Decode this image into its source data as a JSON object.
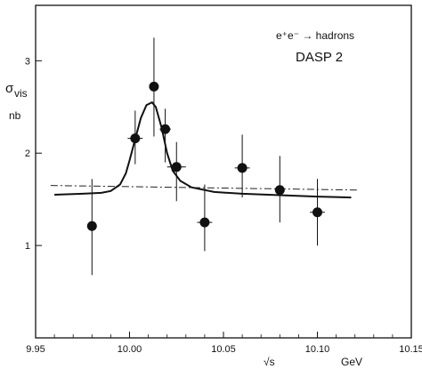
{
  "chart_data": {
    "type": "scatter",
    "title": "DASP 2",
    "reaction_label": "e⁺e⁻ → hadrons",
    "ylabel_main": "σ",
    "ylabel_sub": "vis",
    "yunit": "nb",
    "xlabel": "√s",
    "xunit": "GeV",
    "xlim": [
      9.95,
      10.15
    ],
    "ylim": [
      0.0,
      3.6
    ],
    "x_ticks": [
      9.95,
      10.0,
      10.05,
      10.1,
      10.15
    ],
    "x_tick_labels": [
      "9.95",
      "10.00",
      "10.05",
      "10.10",
      "10.15"
    ],
    "y_ticks": [
      1,
      2,
      3
    ],
    "y_tick_labels": [
      "1",
      "2",
      "3"
    ],
    "grid": false,
    "points": [
      {
        "x": 9.98,
        "y": 1.21,
        "ylo": 0.68,
        "yhi": 1.72,
        "xlo": 9.98,
        "xhi": 9.98
      },
      {
        "x": 10.003,
        "y": 2.16,
        "ylo": 1.88,
        "yhi": 2.46,
        "xlo": 9.999,
        "xhi": 10.007
      },
      {
        "x": 10.013,
        "y": 2.72,
        "ylo": 2.18,
        "yhi": 3.25,
        "xlo": 10.013,
        "xhi": 10.013
      },
      {
        "x": 10.019,
        "y": 2.26,
        "ylo": 1.9,
        "yhi": 2.48,
        "xlo": 10.016,
        "xhi": 10.022
      },
      {
        "x": 10.025,
        "y": 1.85,
        "ylo": 1.48,
        "yhi": 2.12,
        "xlo": 10.02,
        "xhi": 10.03
      },
      {
        "x": 10.04,
        "y": 1.25,
        "ylo": 0.94,
        "yhi": 1.66,
        "xlo": 10.036,
        "xhi": 10.044
      },
      {
        "x": 10.06,
        "y": 1.84,
        "ylo": 1.52,
        "yhi": 2.2,
        "xlo": 10.056,
        "xhi": 10.064
      },
      {
        "x": 10.08,
        "y": 1.6,
        "ylo": 1.25,
        "yhi": 1.97,
        "xlo": 10.08,
        "xhi": 10.08
      },
      {
        "x": 10.1,
        "y": 1.36,
        "ylo": 1.0,
        "yhi": 1.72,
        "xlo": 10.096,
        "xhi": 10.104
      }
    ],
    "fit_curve": [
      [
        9.96,
        1.55
      ],
      [
        9.975,
        1.56
      ],
      [
        9.985,
        1.57
      ],
      [
        9.99,
        1.59
      ],
      [
        9.995,
        1.66
      ],
      [
        9.998,
        1.78
      ],
      [
        10.0,
        1.92
      ],
      [
        10.003,
        2.15
      ],
      [
        10.006,
        2.38
      ],
      [
        10.009,
        2.52
      ],
      [
        10.012,
        2.55
      ],
      [
        10.014,
        2.5
      ],
      [
        10.017,
        2.28
      ],
      [
        10.02,
        2.0
      ],
      [
        10.023,
        1.81
      ],
      [
        10.027,
        1.7
      ],
      [
        10.033,
        1.63
      ],
      [
        10.045,
        1.58
      ],
      [
        10.06,
        1.56
      ],
      [
        10.08,
        1.545
      ],
      [
        10.1,
        1.53
      ],
      [
        10.118,
        1.52
      ]
    ],
    "baseline": [
      [
        9.958,
        1.65
      ],
      [
        10.122,
        1.6
      ]
    ]
  }
}
